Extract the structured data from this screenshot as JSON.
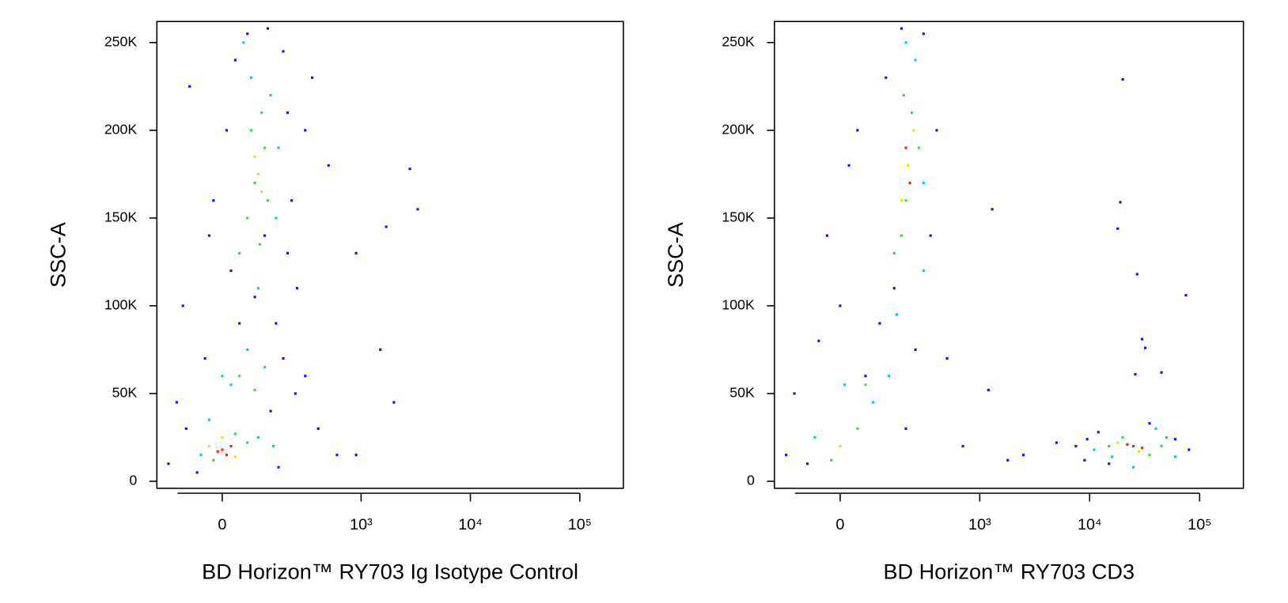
{
  "chart_data": [
    {
      "type": "scatter",
      "xlabel": "BD Horizon™ RY703 Ig Isotype Control",
      "ylabel": "SSC-A",
      "xscale": "asinh",
      "xlim": [
        -200,
        250000
      ],
      "ylim": [
        -4000,
        262000
      ],
      "xticks": [
        0,
        {
          "value": 1000,
          "label": "10³"
        },
        {
          "value": 10000,
          "label": "10⁴"
        },
        {
          "value": 100000,
          "label": "10⁵"
        }
      ],
      "yticks": [
        0,
        {
          "value": 50000,
          "label": "50K"
        },
        {
          "value": 100000,
          "label": "100K"
        },
        {
          "value": 150000,
          "label": "150K"
        },
        {
          "value": 200000,
          "label": "200K"
        },
        {
          "value": 250000,
          "label": "250K"
        }
      ],
      "series": [
        {
          "color": "#1010ff",
          "x": [
            -150,
            -90,
            -60,
            -120,
            130,
            160,
            -40,
            180,
            40,
            150,
            20,
            200,
            -20,
            220,
            10,
            200,
            30,
            180,
            120,
            60,
            250,
            300,
            400,
            600,
            900,
            1500,
            1700,
            2800,
            3300,
            2000,
            900,
            500,
            -80,
            350,
            -100,
            300,
            80,
            110,
            -30,
            240
          ],
          "y": [
            10000,
            30000,
            5000,
            45000,
            40000,
            8000,
            70000,
            70000,
            90000,
            90000,
            120000,
            130000,
            160000,
            160000,
            200000,
            210000,
            240000,
            245000,
            258000,
            255000,
            110000,
            60000,
            30000,
            15000,
            15000,
            75000,
            145000,
            178000,
            155000,
            45000,
            130000,
            180000,
            225000,
            230000,
            100000,
            200000,
            105000,
            140000,
            140000,
            50000
          ]
        },
        {
          "color": "#00c8ff",
          "x": [
            -50,
            90,
            20,
            110,
            60,
            40,
            150,
            70,
            130,
            90,
            -30,
            140,
            50,
            160,
            0
          ],
          "y": [
            15000,
            25000,
            55000,
            65000,
            75000,
            130000,
            150000,
            230000,
            220000,
            110000,
            35000,
            20000,
            250000,
            190000,
            60000
          ]
        },
        {
          "color": "#40d840",
          "x": [
            -20,
            60,
            40,
            80,
            80,
            110,
            60,
            100,
            70,
            120,
            95,
            30
          ],
          "y": [
            12000,
            22000,
            60000,
            52000,
            170000,
            190000,
            150000,
            210000,
            200000,
            160000,
            135000,
            27000
          ]
        },
        {
          "color": "#f0e000",
          "x": [
            0,
            30,
            90,
            80,
            100,
            -30
          ],
          "y": [
            25000,
            14000,
            175000,
            185000,
            165000,
            20000
          ]
        },
        {
          "color": "#ff2000",
          "x": [
            0,
            20,
            -10,
            10
          ],
          "y": [
            18000,
            20000,
            17000,
            15000
          ]
        }
      ]
    },
    {
      "type": "scatter",
      "xlabel": "BD Horizon™ RY703 CD3",
      "ylabel": "SSC-A",
      "xscale": "asinh",
      "xlim": [
        -200,
        250000
      ],
      "ylim": [
        -4000,
        262000
      ],
      "xticks": [
        0,
        {
          "value": 1000,
          "label": "10³"
        },
        {
          "value": 10000,
          "label": "10⁴"
        },
        {
          "value": 100000,
          "label": "10⁵"
        }
      ],
      "yticks": [
        0,
        {
          "value": 50000,
          "label": "50K"
        },
        {
          "value": 100000,
          "label": "100K"
        },
        {
          "value": 150000,
          "label": "150K"
        },
        {
          "value": 200000,
          "label": "200K"
        },
        {
          "value": 250000,
          "label": "250K"
        }
      ],
      "series": [
        {
          "color": "#1010ff",
          "x": [
            -150,
            -120,
            -80,
            60,
            -50,
            200,
            100,
            -30,
            40,
            120,
            180,
            300,
            400,
            350,
            150,
            250,
            500,
            700,
            1300,
            1200,
            1800,
            2500,
            5000,
            7500,
            9000,
            12000,
            20000,
            19000,
            18000,
            27000,
            30000,
            32000,
            26000,
            45000,
            60000,
            75000,
            80000,
            35000,
            15000,
            9500,
            20,
            0
          ],
          "y": [
            15000,
            50000,
            10000,
            60000,
            80000,
            30000,
            90000,
            140000,
            200000,
            230000,
            258000,
            255000,
            200000,
            140000,
            110000,
            75000,
            70000,
            20000,
            155000,
            52000,
            12000,
            15000,
            22000,
            20000,
            12000,
            28000,
            229000,
            159000,
            144000,
            118000,
            81000,
            76000,
            61000,
            62000,
            24000,
            106000,
            18000,
            33000,
            10000,
            24000,
            180000,
            100000
          ]
        },
        {
          "color": "#00c8ff",
          "x": [
            -60,
            80,
            10,
            130,
            160,
            150,
            300,
            250,
            200,
            300,
            11000,
            16000,
            50000,
            60000,
            25000,
            40000
          ],
          "y": [
            25000,
            45000,
            55000,
            60000,
            95000,
            130000,
            120000,
            240000,
            250000,
            170000,
            18000,
            14000,
            25000,
            14000,
            8000,
            30000
          ]
        },
        {
          "color": "#40d840",
          "x": [
            -20,
            40,
            60,
            180,
            190,
            270,
            200,
            230,
            15000,
            35000,
            45000,
            20000
          ],
          "y": [
            12000,
            30000,
            55000,
            140000,
            220000,
            190000,
            160000,
            210000,
            20000,
            15000,
            20000,
            25000
          ]
        },
        {
          "color": "#f0e000",
          "x": [
            0,
            210,
            240,
            180,
            28000,
            18000
          ],
          "y": [
            20000,
            180000,
            200000,
            160000,
            17000,
            22000
          ]
        },
        {
          "color": "#ff2000",
          "x": [
            220,
            200,
            25000,
            22000,
            30000
          ],
          "y": [
            170000,
            190000,
            20000,
            21000,
            19000
          ]
        }
      ]
    }
  ]
}
